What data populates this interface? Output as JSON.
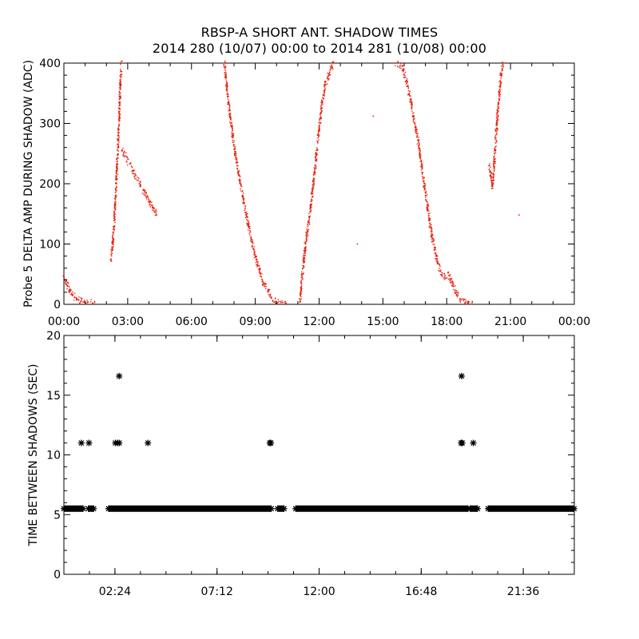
{
  "page": {
    "title_line1": "RBSP-A SHORT ANT. SHADOW TIMES",
    "title_line2": "2014 280 (10/07) 00:00 to 2014 281 (10/08) 00:00"
  },
  "colors": {
    "top_points": "#e8200c",
    "bottom_points": "#000000",
    "axes": "#000000"
  },
  "chart_data": [
    {
      "type": "scatter",
      "title": "",
      "xlabel": "",
      "ylabel": "Probe 5 DELTA AMP DURING SHADOW (ADC)",
      "xlim_hours": [
        0,
        24
      ],
      "ylim": [
        0,
        400
      ],
      "x_ticks": [
        "00:00",
        "03:00",
        "06:00",
        "09:00",
        "12:00",
        "15:00",
        "18:00",
        "21:00",
        "00:00"
      ],
      "y_ticks": [
        "0",
        "100",
        "200",
        "300",
        "400"
      ],
      "grid": false,
      "marker": "dot",
      "series": [
        {
          "points": [
            [
              0.0,
              45
            ],
            [
              0.1,
              38
            ],
            [
              0.2,
              30
            ],
            [
              0.3,
              22
            ],
            [
              0.4,
              16
            ],
            [
              0.5,
              12
            ],
            [
              0.6,
              9
            ],
            [
              0.7,
              7
            ],
            [
              0.8,
              5
            ],
            [
              0.9,
              4
            ],
            [
              1.0,
              3
            ],
            [
              1.1,
              3
            ],
            [
              1.35,
              2
            ],
            [
              1.45,
              3
            ]
          ]
        },
        {
          "points": [
            [
              2.22,
              75
            ],
            [
              2.3,
              100
            ],
            [
              2.38,
              145
            ],
            [
              2.46,
              200
            ],
            [
              2.54,
              260
            ],
            [
              2.62,
              330
            ],
            [
              2.7,
              400
            ]
          ]
        },
        {
          "points": [
            [
              2.75,
              255
            ],
            [
              4.35,
              148
            ]
          ]
        },
        {
          "points": [
            [
              7.55,
              400
            ],
            [
              7.8,
              315
            ],
            [
              8.0,
              265
            ],
            [
              8.2,
              220
            ],
            [
              8.4,
              180
            ],
            [
              8.6,
              145
            ],
            [
              8.8,
              110
            ],
            [
              9.0,
              80
            ],
            [
              9.2,
              55
            ],
            [
              9.4,
              35
            ],
            [
              9.6,
              22
            ],
            [
              9.75,
              10
            ],
            [
              9.95,
              5
            ],
            [
              10.2,
              3
            ],
            [
              10.45,
              2
            ]
          ]
        },
        {
          "points": [
            [
              11.1,
              5
            ],
            [
              11.2,
              45
            ],
            [
              11.3,
              80
            ],
            [
              11.4,
              110
            ],
            [
              11.55,
              145
            ],
            [
              11.7,
              190
            ],
            [
              11.85,
              240
            ],
            [
              12.0,
              290
            ],
            [
              12.15,
              335
            ],
            [
              12.3,
              365
            ],
            [
              12.5,
              385
            ],
            [
              12.7,
              400
            ]
          ]
        },
        {
          "points": [
            [
              13.8,
              100
            ],
            [
              14.55,
              312
            ]
          ]
        },
        {
          "points": [
            [
              15.6,
              400
            ],
            [
              15.9,
              395
            ],
            [
              16.1,
              370
            ],
            [
              16.3,
              340
            ],
            [
              16.5,
              300
            ],
            [
              16.7,
              260
            ],
            [
              16.9,
              210
            ],
            [
              17.1,
              160
            ],
            [
              17.3,
              115
            ],
            [
              17.5,
              80
            ],
            [
              17.7,
              55
            ],
            [
              17.9,
              45
            ],
            [
              18.1,
              48
            ],
            [
              18.3,
              30
            ],
            [
              18.5,
              15
            ],
            [
              18.7,
              8
            ],
            [
              18.9,
              3
            ],
            [
              19.2,
              3
            ]
          ]
        },
        {
          "points": [
            [
              20.0,
              230
            ],
            [
              20.15,
              195
            ],
            [
              20.25,
              240
            ],
            [
              20.4,
              320
            ],
            [
              20.55,
              380
            ],
            [
              20.65,
              400
            ],
            [
              21.4,
              148
            ]
          ]
        }
      ]
    },
    {
      "type": "scatter",
      "title": "",
      "xlabel": "",
      "ylabel": "TIME BETWEEN SHADOWS (SEC)",
      "xlim_hours": [
        0,
        24
      ],
      "ylim": [
        0,
        20
      ],
      "x_ticks": [
        "02:24",
        "07:12",
        "12:00",
        "16:48",
        "21:36"
      ],
      "y_ticks": [
        "0",
        "5",
        "10",
        "15",
        "20"
      ],
      "grid": false,
      "marker": "asterisk",
      "baseline": {
        "y": 5.5,
        "ranges_hours": [
          [
            0.0,
            0.9
          ],
          [
            1.15,
            1.4
          ],
          [
            2.1,
            9.75
          ],
          [
            10.05,
            10.35
          ],
          [
            10.9,
            19.0
          ],
          [
            19.1,
            19.45
          ],
          [
            19.95,
            23.99
          ]
        ]
      },
      "series": [
        {
          "points": [
            [
              0.82,
              11
            ],
            [
              1.18,
              11
            ],
            [
              2.42,
              11
            ],
            [
              2.52,
              11
            ],
            [
              2.6,
              11
            ],
            [
              3.95,
              11
            ],
            [
              9.68,
              11
            ],
            [
              9.73,
              11
            ],
            [
              18.68,
              11
            ],
            [
              18.73,
              11
            ],
            [
              19.25,
              11
            ],
            [
              2.6,
              16.6
            ],
            [
              18.7,
              16.6
            ]
          ]
        }
      ]
    }
  ]
}
